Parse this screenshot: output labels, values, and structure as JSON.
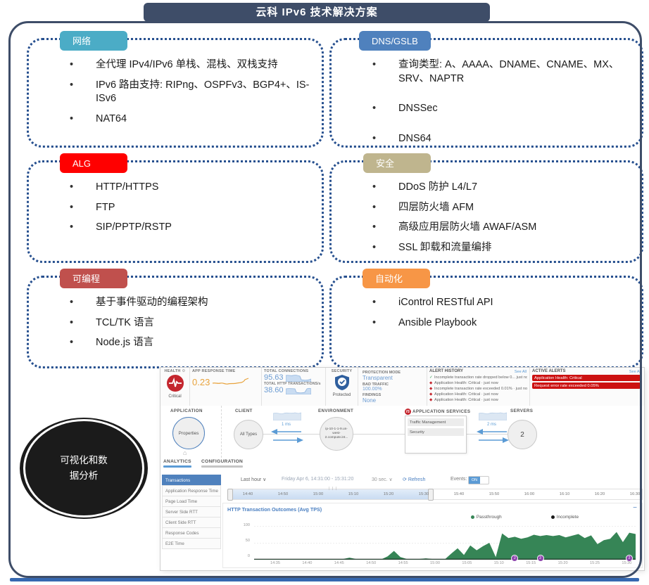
{
  "page": {
    "title": "云科 IPv6 技术解决方案"
  },
  "colors": {
    "frame": "#3E4D68",
    "box_border": "#27508F",
    "network": "#4BACC6",
    "dns": "#4F81BD",
    "alg": "#FF0000",
    "security": "#BFB58E",
    "programmable": "#C0504D",
    "automation": "#F79646",
    "chart_green": "#368556",
    "marker_purple": "#8E44AD",
    "alert_red": "#CC1111",
    "accent_blue": "#4F81BD"
  },
  "boxes": [
    {
      "label": "网络",
      "items": [
        "全代理 IPv4/IPv6 单栈、混栈、双栈支持",
        "IPv6 路由支持: RIPng、OSPFv3、BGP4+、IS-ISv6",
        "NAT64"
      ]
    },
    {
      "label": "DNS/GSLB",
      "items": [
        "查询类型: A、AAAA、DNAME、CNAME、MX、SRV、NAPTR",
        "DNSSec",
        "DNS64"
      ]
    },
    {
      "label": "ALG",
      "items": [
        "HTTP/HTTPS",
        "FTP",
        "SIP/PPTP/RSTP"
      ]
    },
    {
      "label": "安全",
      "items": [
        "DDoS 防护 L4/L7",
        "四层防火墙 AFM",
        "高级应用层防火墙 AWAF/ASM",
        "SSL 卸载和流量编排"
      ]
    },
    {
      "label": "可编程",
      "items": [
        "基于事件驱动的编程架构",
        "TCL/TK 语言",
        "Node.js 语言"
      ]
    },
    {
      "label": "自动化",
      "items": [
        "iControl RESTful API",
        "Ansible Playbook"
      ]
    }
  ],
  "ellipse": {
    "text": "可视化和数\n据分析"
  },
  "dashboard": {
    "health": {
      "label": "HEALTH",
      "status": "Critical"
    },
    "app_response": {
      "label": "APP RESPONSE TIME",
      "value": "0.23"
    },
    "totals": {
      "connections_label": "TOTAL CONNECTIONS",
      "connections_value": "95.63",
      "http_label": "TOTAL HTTP TRANSACTIONS/s",
      "http_value": "38.60"
    },
    "security": {
      "label": "SECURITY",
      "status": "Protected"
    },
    "protection": {
      "mode_label": "PROTECTION MODE",
      "mode_value": "Transparent",
      "bad_traffic_label": "BAD TRAFFIC",
      "bad_traffic_value": "100.00%",
      "findings_label": "FINDINGS",
      "findings_value": "None"
    },
    "alert_history": {
      "title": "ALERT HISTORY",
      "see_all": "See All",
      "items": [
        {
          "icon": "check",
          "text": "Incomplete transaction rate dropped below 0... just now"
        },
        {
          "icon": "alert",
          "text": "Application Health: Critical · just now"
        },
        {
          "icon": "alert",
          "text": "Incomplete transaction rate exceeded 0.01% · just now"
        },
        {
          "icon": "alert",
          "text": "Application Health: Critical · just now"
        },
        {
          "icon": "alert",
          "text": "Application Health: Critical · just now"
        }
      ]
    },
    "active_alerts": {
      "title": "ACTIVE ALERTS",
      "see_all": "See All",
      "items": [
        {
          "text": "Application Health: Critical"
        },
        {
          "text": "Request error rate exceeded 0.05%"
        }
      ]
    },
    "topology": {
      "application_label": "APPLICATION",
      "application_node": "Properties",
      "client_label": "CLIENT",
      "client_node": "All Types",
      "latency_client": "1 ms",
      "environment_label": "ENVIRONMENT",
      "environment_node": "ip-10-1-1-9.us-west-2.compute.int...",
      "services_label": "APPLICATION SERVICES",
      "services": [
        {
          "text": "Traffic Management"
        },
        {
          "text": "Security"
        }
      ],
      "latency_servers": "2 ms",
      "servers_label": "SERVERS",
      "servers_count": "2"
    },
    "analytics": {
      "tabs": [
        {
          "label": "ANALYTICS",
          "active": true
        },
        {
          "label": "CONFIGURATION",
          "active": false
        }
      ],
      "sidebar": [
        {
          "label": "Transactions",
          "active": true
        },
        {
          "label": "Application Response Time"
        },
        {
          "label": "Page Load Time"
        },
        {
          "label": "Server Side RTT"
        },
        {
          "label": "Client Side RTT"
        },
        {
          "label": "Response Codes"
        },
        {
          "label": "E2E Time"
        }
      ],
      "controls": {
        "range": "Last hour ∨",
        "date": "Friday Apr 6, 14:31:00 - 15:31:20",
        "interval": "30 sec. ∨",
        "refresh_icon": "⟳",
        "refresh": "Refresh",
        "events_label": "Events:",
        "events_state": "ON"
      },
      "timeline_ticks": [
        {
          "text": "14:40"
        },
        {
          "text": "14:50"
        },
        {
          "text": "15:00"
        },
        {
          "text": "15:10"
        },
        {
          "text": "15:20"
        },
        {
          "text": "15:30"
        },
        {
          "text": "15:40"
        },
        {
          "text": "15:50"
        },
        {
          "text": "16:00"
        },
        {
          "text": "16:10"
        },
        {
          "text": "16:20"
        },
        {
          "text": "16:30"
        }
      ]
    }
  },
  "chart_data": {
    "type": "area",
    "title": "HTTP Transaction Outcomes (Avg TPS)",
    "legend": [
      {
        "name": "Passthrough",
        "color": "#368556"
      },
      {
        "name": "Incomplete",
        "color": "#1a1a1a"
      }
    ],
    "ylim": [
      0,
      100
    ],
    "y_ticks": [
      {
        "text": "100"
      },
      {
        "text": "50"
      },
      {
        "text": "0"
      }
    ],
    "x_start": "14:31",
    "x_end": "15:31",
    "x_ticks": [
      {
        "text": "14:35"
      },
      {
        "text": "14:40"
      },
      {
        "text": "14:45"
      },
      {
        "text": "14:50"
      },
      {
        "text": "14:55"
      },
      {
        "text": "15:00"
      },
      {
        "text": "15:05"
      },
      {
        "text": "15:10"
      },
      {
        "text": "15:15"
      },
      {
        "text": "15:20"
      },
      {
        "text": "15:25"
      },
      {
        "text": "15:30"
      }
    ],
    "series": [
      {
        "name": "Passthrough",
        "color": "#368556",
        "values": [
          1,
          1,
          1,
          1,
          1,
          1,
          1,
          1,
          1,
          1,
          1,
          1,
          1,
          1,
          2,
          6,
          2,
          1,
          1,
          1,
          1,
          10,
          26,
          8,
          2,
          1,
          2,
          4,
          2,
          1,
          1,
          18,
          34,
          14,
          42,
          28,
          40,
          50,
          8,
          78,
          64,
          68,
          62,
          66,
          74,
          70,
          73,
          70,
          73,
          66,
          71,
          76,
          64,
          72,
          46,
          58,
          62,
          82,
          52,
          80,
          76
        ]
      },
      {
        "name": "Incomplete",
        "color": "#1a1a1a",
        "approx_constant_value": 0.5
      }
    ],
    "event_markers": [
      {
        "label": "2",
        "time": "15:12"
      },
      {
        "label": "2",
        "time": "15:16"
      },
      {
        "label": "2",
        "time": "15:30"
      }
    ]
  }
}
